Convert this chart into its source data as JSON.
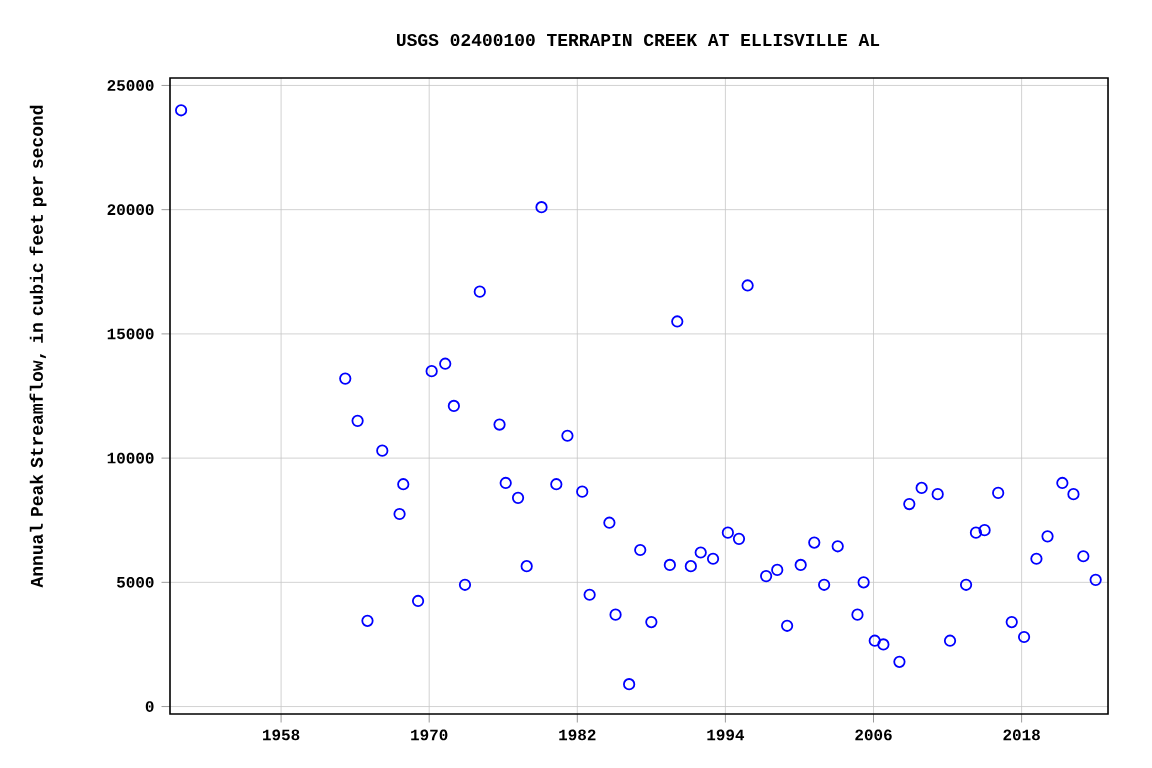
{
  "chart_data": {
    "type": "scatter",
    "title": "USGS 02400100 TERRAPIN CREEK AT ELLISVILLE AL",
    "ylabel": "Annual Peak Streamflow, in cubic feet per second",
    "x": [
      1949.9,
      1963.2,
      1964.2,
      1965.0,
      1966.2,
      1967.9,
      1967.6,
      1969.1,
      1970.2,
      1971.3,
      1972.0,
      1972.9,
      1974.1,
      1975.7,
      1976.2,
      1977.2,
      1977.9,
      1979.1,
      1980.3,
      1981.2,
      1982.4,
      1983.0,
      1984.6,
      1985.1,
      1986.2,
      1987.1,
      1988.0,
      1989.5,
      1990.1,
      1991.2,
      1992.0,
      1993.0,
      1994.2,
      1995.1,
      1995.8,
      1997.3,
      1998.2,
      1999.0,
      2000.1,
      2001.2,
      2002.0,
      2003.1,
      2004.7,
      2005.2,
      2006.1,
      2006.8,
      2008.1,
      2008.9,
      2009.9,
      2011.2,
      2012.2,
      2013.5,
      2014.3,
      2015.0,
      2016.1,
      2017.2,
      2018.2,
      2019.2,
      2020.1,
      2021.3,
      2022.2,
      2023.0,
      2024.0
    ],
    "series": [
      {
        "color": "#0000ff",
        "values": [
          24000,
          13200,
          11500,
          3450,
          10300,
          8950,
          7750,
          4250,
          13500,
          13800,
          12100,
          4900,
          16700,
          11350,
          9000,
          8400,
          5650,
          20100,
          8950,
          10900,
          8650,
          4500,
          7400,
          3700,
          900,
          6300,
          3400,
          5700,
          15500,
          5650,
          6200,
          5950,
          7000,
          6750,
          16950,
          5250,
          5500,
          3250,
          5700,
          6600,
          4900,
          6450,
          3700,
          5000,
          2650,
          2500,
          1800,
          8150,
          8800,
          8550,
          2650,
          4900,
          7000,
          7100,
          8600,
          3400,
          2800,
          5950,
          6850,
          9000,
          8550,
          6050,
          5100
        ]
      }
    ],
    "xlim": [
      1949,
      2025
    ],
    "xticks": [
      1958,
      1970,
      1982,
      1994,
      2006,
      2018
    ],
    "ylim": [
      -300,
      25300
    ],
    "yticks": [
      0,
      5000,
      10000,
      15000,
      20000,
      25000
    ],
    "grid": true,
    "marker": "circle"
  }
}
